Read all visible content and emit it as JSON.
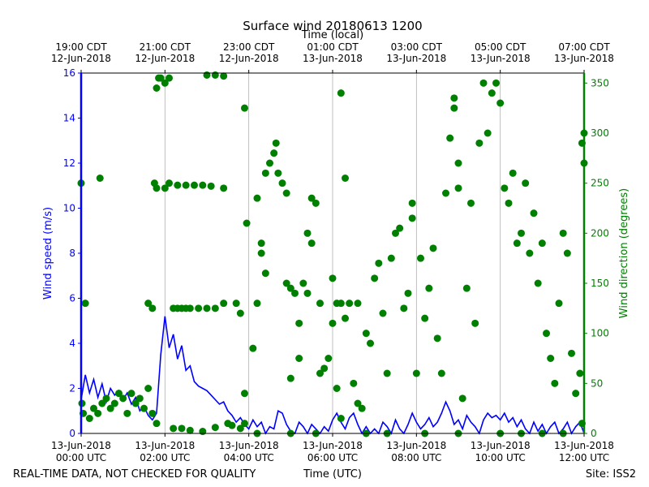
{
  "chart_data": {
    "type": "line_scatter",
    "title": "Surface wind 20180613 1200",
    "top_axis_label": "Time (local)",
    "xlabel": "Time (UTC)",
    "ylabel": "Wind speed (m/s)",
    "y2label": "Wind direction (degrees)",
    "footer_left": "REAL-TIME DATA, NOT CHECKED FOR QUALITY",
    "footer_right": "Site: ISS2",
    "xlim": [
      0,
      12
    ],
    "xticks": [
      {
        "value": 0,
        "label": "13-Jun-2018\n00:00 UTC"
      },
      {
        "value": 2,
        "label": "13-Jun-2018\n02:00 UTC"
      },
      {
        "value": 4,
        "label": "13-Jun-2018\n04:00 UTC"
      },
      {
        "value": 6,
        "label": "13-Jun-2018\n06:00 UTC"
      },
      {
        "value": 8,
        "label": "13-Jun-2018\n08:00 UTC"
      },
      {
        "value": 10,
        "label": "13-Jun-2018\n10:00 UTC"
      },
      {
        "value": 12,
        "label": "13-Jun-2018\n12:00 UTC"
      }
    ],
    "top_xticks": [
      {
        "value": 0,
        "label": "19:00 CDT\n12-Jun-2018"
      },
      {
        "value": 2,
        "label": "21:00 CDT\n12-Jun-2018"
      },
      {
        "value": 4,
        "label": "23:00 CDT\n12-Jun-2018"
      },
      {
        "value": 6,
        "label": "01:00 CDT\n13-Jun-2018"
      },
      {
        "value": 8,
        "label": "03:00 CDT\n13-Jun-2018"
      },
      {
        "value": 10,
        "label": "05:00 CDT\n13-Jun-2018"
      },
      {
        "value": 12,
        "label": "07:00 CDT\n13-Jun-2018"
      }
    ],
    "ylim": [
      0,
      16
    ],
    "yticks": [
      0,
      2,
      4,
      6,
      8,
      10,
      12,
      14,
      16
    ],
    "y2lim": [
      0,
      360
    ],
    "y2ticks": [
      0,
      50,
      100,
      150,
      200,
      250,
      300,
      350
    ],
    "grid": "x",
    "series": [
      {
        "name": "Wind speed",
        "type": "line",
        "color": "#0000ff",
        "x": [
          0,
          0.1,
          0.2,
          0.3,
          0.4,
          0.5,
          0.6,
          0.7,
          0.8,
          0.9,
          1,
          1.1,
          1.2,
          1.3,
          1.4,
          1.5,
          1.6,
          1.7,
          1.8,
          1.9,
          2,
          2.1,
          2.2,
          2.3,
          2.4,
          2.5,
          2.6,
          2.7,
          2.8,
          2.9,
          3,
          3.1,
          3.2,
          3.3,
          3.4,
          3.5,
          3.6,
          3.7,
          3.8,
          3.9,
          4,
          4.1,
          4.2,
          4.3,
          4.4,
          4.5,
          4.6,
          4.7,
          4.8,
          4.9,
          5,
          5.1,
          5.2,
          5.3,
          5.4,
          5.5,
          5.6,
          5.7,
          5.8,
          5.9,
          6,
          6.1,
          6.2,
          6.3,
          6.4,
          6.5,
          6.6,
          6.7,
          6.8,
          6.9,
          7,
          7.1,
          7.2,
          7.3,
          7.4,
          7.5,
          7.6,
          7.7,
          7.8,
          7.9,
          8,
          8.1,
          8.2,
          8.3,
          8.4,
          8.5,
          8.6,
          8.7,
          8.8,
          8.9,
          9,
          9.1,
          9.2,
          9.3,
          9.4,
          9.5,
          9.6,
          9.7,
          9.8,
          9.9,
          10,
          10.1,
          10.2,
          10.3,
          10.4,
          10.5,
          10.6,
          10.7,
          10.8,
          10.9,
          11,
          11.1,
          11.2,
          11.3,
          11.4,
          11.5,
          11.6,
          11.7,
          11.8,
          11.9,
          12
        ],
        "values": [
          1.5,
          2.6,
          1.8,
          2.4,
          1.6,
          2.2,
          1.4,
          2.0,
          1.7,
          1.9,
          1.5,
          1.8,
          1.3,
          1.6,
          1.0,
          1.2,
          0.8,
          0.6,
          0.9,
          3.5,
          5.2,
          3.8,
          4.4,
          3.3,
          3.9,
          2.8,
          3.0,
          2.3,
          2.1,
          2.0,
          1.9,
          1.7,
          1.5,
          1.3,
          1.4,
          1.0,
          0.8,
          0.5,
          0.7,
          0.4,
          0.2,
          0.6,
          0.3,
          0.5,
          0.0,
          0.3,
          0.2,
          1.0,
          0.9,
          0.4,
          0.1,
          0.0,
          0.5,
          0.3,
          0.0,
          0.4,
          0.2,
          0.0,
          0.3,
          0.1,
          0.6,
          0.9,
          0.5,
          0.2,
          0.7,
          0.9,
          0.4,
          0.0,
          0.3,
          0.0,
          0.2,
          0.0,
          0.5,
          0.3,
          0.0,
          0.6,
          0.2,
          0.0,
          0.4,
          0.9,
          0.5,
          0.2,
          0.4,
          0.7,
          0.3,
          0.5,
          0.9,
          1.4,
          1.0,
          0.4,
          0.6,
          0.2,
          0.8,
          0.5,
          0.3,
          0.0,
          0.6,
          0.9,
          0.7,
          0.8,
          0.6,
          0.9,
          0.5,
          0.7,
          0.3,
          0.6,
          0.2,
          0.0,
          0.5,
          0.1,
          0.4,
          0.0,
          0.3,
          0.5,
          0.0,
          0.2,
          0.5,
          0.0,
          0.3,
          0.5,
          0.0
        ]
      },
      {
        "name": "Wind direction",
        "type": "scatter",
        "axis": "y2",
        "color": "#008000",
        "x": [
          0,
          0.02,
          0.05,
          0.1,
          0.2,
          0.3,
          0.4,
          0.5,
          0.45,
          0.6,
          0.7,
          0.8,
          0.9,
          1,
          1.1,
          1.2,
          1.3,
          1.4,
          1.5,
          1.6,
          1.7,
          1.8,
          1.6,
          1.7,
          1.75,
          1.8,
          1.8,
          1.85,
          1.9,
          2,
          2.1,
          2,
          2.1,
          2.2,
          2.3,
          2.4,
          2.5,
          2.6,
          2.8,
          3,
          3.2,
          3.4,
          2.3,
          2.5,
          2.7,
          2.9,
          3.1,
          3.4,
          2.2,
          2.4,
          2.6,
          2.9,
          3.2,
          3,
          3.2,
          3.4,
          3.5,
          3.6,
          3.7,
          3.8,
          3.9,
          3.8,
          3.9,
          3.9,
          3.95,
          4.1,
          4.2,
          4.2,
          4.3,
          4.3,
          4.4,
          4.4,
          4.5,
          4.6,
          4.65,
          4.7,
          4.8,
          4.9,
          4.9,
          5,
          5,
          5.1,
          5.2,
          5.2,
          5.3,
          5.4,
          5.4,
          5.5,
          5.6,
          5.5,
          5.7,
          5.7,
          5.8,
          5.6,
          6,
          5.9,
          6,
          6.1,
          6.2,
          6.1,
          6.2,
          6.2,
          6.3,
          6.3,
          6.4,
          6.5,
          6.6,
          6.6,
          6.7,
          6.8,
          6.9,
          7,
          7.1,
          7.2,
          7.3,
          7.4,
          7.5,
          7.6,
          7.7,
          7.8,
          7.9,
          7.9,
          8,
          8.1,
          8.2,
          8.3,
          8.4,
          8.5,
          8.6,
          8.7,
          8.8,
          8.9,
          9,
          9,
          8.9,
          9.1,
          9.2,
          9.3,
          9.4,
          9.5,
          9.6,
          9.7,
          9.8,
          9.9,
          10,
          10.1,
          10.2,
          10.3,
          10.4,
          10.5,
          10.6,
          10.7,
          10.8,
          10.9,
          11,
          11.1,
          11.2,
          11.3,
          11.4,
          11.5,
          11.6,
          11.7,
          11.8,
          11.9,
          11.95,
          12,
          12,
          11.95,
          11.5,
          6.8,
          7.3,
          8.2,
          9,
          10,
          10.5,
          11,
          5,
          4.2
        ],
        "values": [
          250,
          30,
          20,
          130,
          15,
          25,
          20,
          30,
          255,
          35,
          25,
          30,
          40,
          35,
          20,
          40,
          30,
          35,
          25,
          45,
          20,
          10,
          130,
          125,
          250,
          245,
          345,
          355,
          355,
          350,
          355,
          245,
          250,
          125,
          125,
          125,
          125,
          125,
          125,
          125,
          125,
          130,
          248,
          248,
          248,
          248,
          247,
          245,
          5,
          5,
          3,
          2,
          6,
          358,
          358,
          357,
          10,
          8,
          130,
          120,
          40,
          5,
          10,
          325,
          210,
          85,
          235,
          130,
          190,
          180,
          160,
          260,
          270,
          280,
          290,
          260,
          250,
          240,
          150,
          145,
          55,
          140,
          110,
          75,
          150,
          140,
          200,
          235,
          230,
          190,
          130,
          60,
          65,
          0,
          155,
          75,
          110,
          130,
          15,
          45,
          130,
          340,
          115,
          255,
          130,
          50,
          130,
          30,
          25,
          100,
          90,
          155,
          170,
          120,
          60,
          175,
          200,
          205,
          125,
          140,
          230,
          215,
          60,
          175,
          115,
          145,
          185,
          95,
          60,
          240,
          295,
          325,
          245,
          270,
          335,
          35,
          145,
          230,
          110,
          290,
          350,
          300,
          340,
          350,
          330,
          245,
          230,
          260,
          190,
          200,
          250,
          180,
          220,
          150,
          190,
          100,
          75,
          50,
          130,
          200,
          180,
          80,
          40,
          60,
          290,
          270,
          300,
          10,
          0,
          0,
          0,
          0,
          0,
          0,
          0,
          0,
          0,
          0
        ]
      }
    ]
  }
}
